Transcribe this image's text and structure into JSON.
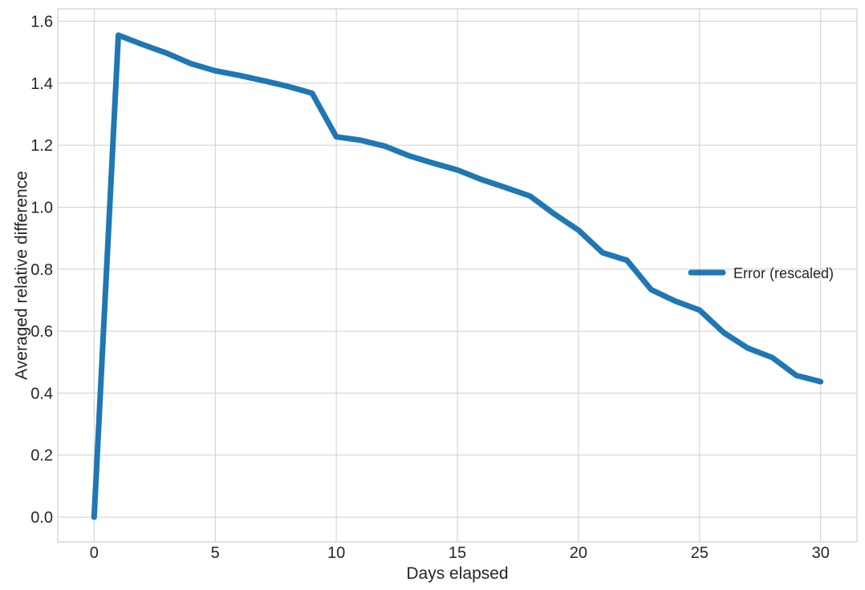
{
  "chart_data": {
    "type": "line",
    "xlabel": "Days elapsed",
    "ylabel": "Averaged relative difference",
    "xlim": [
      -1.5,
      31.5
    ],
    "ylim": [
      -0.08,
      1.64
    ],
    "xticks": [
      0,
      5,
      10,
      15,
      20,
      25,
      30
    ],
    "yticks": [
      0.0,
      0.2,
      0.4,
      0.6,
      0.8,
      1.0,
      1.2,
      1.4,
      1.6
    ],
    "xtick_labels": [
      "0",
      "5",
      "10",
      "15",
      "20",
      "25",
      "30"
    ],
    "ytick_labels": [
      "0.0",
      "0.2",
      "0.4",
      "0.6",
      "0.8",
      "1.0",
      "1.2",
      "1.4",
      "1.6"
    ],
    "grid": true,
    "legend_position": "center-right",
    "series": [
      {
        "name": "Error (rescaled)",
        "color": "#1f77b4",
        "x": [
          0,
          1,
          2,
          3,
          4,
          5,
          6,
          7,
          8,
          9,
          10,
          11,
          12,
          13,
          14,
          15,
          16,
          17,
          18,
          19,
          20,
          21,
          22,
          23,
          24,
          25,
          26,
          27,
          28,
          29,
          30
        ],
        "y": [
          0.0,
          1.555,
          1.525,
          1.497,
          1.463,
          1.44,
          1.425,
          1.408,
          1.39,
          1.368,
          1.227,
          1.216,
          1.197,
          1.166,
          1.142,
          1.12,
          1.089,
          1.063,
          1.036,
          0.978,
          0.926,
          0.853,
          0.829,
          0.734,
          0.697,
          0.668,
          0.595,
          0.545,
          0.515,
          0.457,
          0.437
        ]
      }
    ]
  }
}
